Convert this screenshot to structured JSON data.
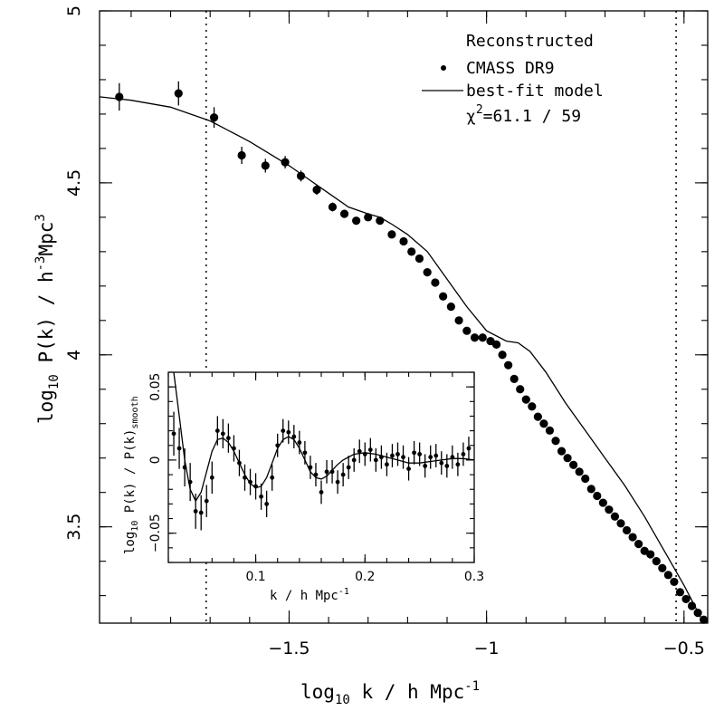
{
  "chart_data": [
    {
      "type": "scatter",
      "role": "main",
      "xlabel_main": "log",
      "xlabel_sub": "10",
      "xlabel_rest": " k / h Mpc",
      "xlabel_sup": "-1",
      "ylabel_main": "log",
      "ylabel_sub": "10",
      "ylabel_rest": " P(k) / h",
      "ylabel_sup1": "-3",
      "ylabel_mid": "Mpc",
      "ylabel_sup2": "3",
      "xlim": [
        -1.98,
        -0.44
      ],
      "ylim": [
        3.22,
        5.0
      ],
      "xticks": [
        -1.5,
        -1,
        -0.5
      ],
      "xtick_labels": [
        "−1.5",
        "−1",
        "−0.5"
      ],
      "yticks": [
        3.5,
        4,
        4.5,
        5
      ],
      "ytick_labels": [
        "3.5",
        "4",
        "4.5",
        "5"
      ],
      "vertical_lines": [
        -1.71,
        -0.52
      ],
      "legend": {
        "title": "Reconstructed",
        "points_label": "CMASS DR9",
        "line_label": "best-fit model",
        "chi_prefix": "χ",
        "chi_sup": "2",
        "chi_rest": "=61.1 / 59"
      },
      "series": [
        {
          "name": "CMASS DR9",
          "kind": "points",
          "x": [
            -1.93,
            -1.78,
            -1.69,
            -1.62,
            -1.56,
            -1.51,
            -1.47,
            -1.43,
            -1.39,
            -1.36,
            -1.33,
            -1.3,
            -1.27,
            -1.24,
            -1.21,
            -1.19,
            -1.17,
            -1.15,
            -1.13,
            -1.11,
            -1.09,
            -1.07,
            -1.05,
            -1.03,
            -1.01,
            -0.99,
            -0.975,
            -0.96,
            -0.945,
            -0.93,
            -0.915,
            -0.9,
            -0.885,
            -0.87,
            -0.855,
            -0.84,
            -0.825,
            -0.81,
            -0.795,
            -0.78,
            -0.765,
            -0.75,
            -0.735,
            -0.72,
            -0.705,
            -0.69,
            -0.675,
            -0.66,
            -0.645,
            -0.63,
            -0.615,
            -0.6,
            -0.585,
            -0.57,
            -0.555,
            -0.54,
            -0.525,
            -0.51,
            -0.495,
            -0.48,
            -0.465,
            -0.45
          ],
          "y": [
            4.75,
            4.76,
            4.69,
            4.58,
            4.55,
            4.56,
            4.52,
            4.48,
            4.43,
            4.41,
            4.39,
            4.4,
            4.39,
            4.35,
            4.33,
            4.3,
            4.28,
            4.24,
            4.21,
            4.17,
            4.14,
            4.1,
            4.07,
            4.05,
            4.05,
            4.04,
            4.03,
            4.0,
            3.97,
            3.93,
            3.9,
            3.87,
            3.85,
            3.82,
            3.8,
            3.78,
            3.75,
            3.72,
            3.7,
            3.68,
            3.66,
            3.64,
            3.61,
            3.59,
            3.57,
            3.55,
            3.53,
            3.51,
            3.49,
            3.47,
            3.45,
            3.43,
            3.42,
            3.4,
            3.38,
            3.36,
            3.34,
            3.31,
            3.29,
            3.27,
            3.25,
            3.23
          ],
          "err": [
            0.04,
            0.035,
            0.03,
            0.025,
            0.02,
            0.018,
            0.016,
            0.015,
            0.013,
            0.012,
            0.011,
            0.011,
            0.01,
            0.01,
            0.009,
            0.009,
            0.008,
            0.008,
            0.008,
            0.007,
            0.007,
            0.007,
            0.007,
            0.006,
            0.006,
            0.006,
            0.006,
            0.006,
            0.006,
            0.006,
            0.006,
            0.006,
            0.006,
            0.006,
            0.006,
            0.006,
            0.006,
            0.006,
            0.006,
            0.006,
            0.006,
            0.006,
            0.006,
            0.006,
            0.006,
            0.006,
            0.006,
            0.006,
            0.006,
            0.006,
            0.006,
            0.006,
            0.006,
            0.006,
            0.006,
            0.006,
            0.006,
            0.006,
            0.006,
            0.006,
            0.006,
            0.006
          ]
        },
        {
          "name": "best-fit model",
          "kind": "line",
          "x": [
            -1.98,
            -1.9,
            -1.8,
            -1.7,
            -1.6,
            -1.5,
            -1.45,
            -1.4,
            -1.35,
            -1.3,
            -1.27,
            -1.24,
            -1.2,
            -1.15,
            -1.1,
            -1.05,
            -1.0,
            -0.95,
            -0.92,
            -0.89,
            -0.85,
            -0.8,
            -0.75,
            -0.7,
            -0.65,
            -0.6,
            -0.55,
            -0.5,
            -0.45
          ],
          "y": [
            4.75,
            4.74,
            4.72,
            4.68,
            4.62,
            4.55,
            4.51,
            4.47,
            4.43,
            4.41,
            4.4,
            4.38,
            4.35,
            4.3,
            4.22,
            4.14,
            4.07,
            4.04,
            4.035,
            4.01,
            3.95,
            3.86,
            3.78,
            3.7,
            3.62,
            3.53,
            3.43,
            3.33,
            3.22
          ]
        }
      ]
    },
    {
      "type": "scatter",
      "role": "inset",
      "xlabel": "k / h Mpc",
      "xlabel_sup": "-1",
      "ylabel_main": "log",
      "ylabel_sub": "10",
      "ylabel_rest": " P(k) / P(k)",
      "ylabel_sub2": "smooth",
      "xlim": [
        0.02,
        0.3
      ],
      "ylim": [
        -0.07,
        0.06
      ],
      "xticks": [
        0.1,
        0.2,
        0.3
      ],
      "xtick_labels": [
        "0.1",
        "0.2",
        "0.3"
      ],
      "yticks": [
        -0.05,
        0,
        0.05
      ],
      "ytick_labels": [
        "−0.05",
        "0",
        "0.05"
      ],
      "series": [
        {
          "name": "CMASS DR9",
          "kind": "points",
          "x": [
            0.025,
            0.03,
            0.035,
            0.04,
            0.045,
            0.05,
            0.055,
            0.06,
            0.065,
            0.07,
            0.075,
            0.08,
            0.085,
            0.09,
            0.095,
            0.1,
            0.105,
            0.11,
            0.115,
            0.12,
            0.125,
            0.13,
            0.135,
            0.14,
            0.145,
            0.15,
            0.155,
            0.16,
            0.165,
            0.17,
            0.175,
            0.18,
            0.185,
            0.19,
            0.195,
            0.2,
            0.205,
            0.21,
            0.215,
            0.22,
            0.225,
            0.23,
            0.235,
            0.24,
            0.245,
            0.25,
            0.255,
            0.26,
            0.265,
            0.27,
            0.275,
            0.28,
            0.285,
            0.29,
            0.295
          ],
          "y": [
            0.018,
            0.008,
            -0.005,
            -0.015,
            -0.035,
            -0.036,
            -0.028,
            -0.012,
            0.02,
            0.018,
            0.015,
            0.008,
            -0.002,
            -0.012,
            -0.015,
            -0.018,
            -0.025,
            -0.03,
            -0.012,
            0.01,
            0.02,
            0.019,
            0.016,
            0.012,
            0.005,
            -0.005,
            -0.01,
            -0.022,
            -0.008,
            -0.008,
            -0.015,
            -0.01,
            -0.005,
            0.0,
            0.006,
            0.004,
            0.007,
            0.0,
            0.002,
            -0.003,
            0.003,
            0.004,
            0.002,
            -0.006,
            0.005,
            0.004,
            -0.004,
            0.002,
            0.003,
            -0.002,
            -0.004,
            0.002,
            -0.003,
            0.004,
            0.008
          ],
          "err": [
            0.015,
            0.014,
            0.013,
            0.013,
            0.012,
            0.012,
            0.011,
            0.011,
            0.01,
            0.01,
            0.01,
            0.009,
            0.009,
            0.009,
            0.009,
            0.009,
            0.009,
            0.009,
            0.009,
            0.008,
            0.008,
            0.008,
            0.008,
            0.008,
            0.008,
            0.008,
            0.008,
            0.008,
            0.008,
            0.008,
            0.008,
            0.008,
            0.008,
            0.008,
            0.008,
            0.008,
            0.008,
            0.008,
            0.008,
            0.008,
            0.008,
            0.008,
            0.008,
            0.008,
            0.008,
            0.008,
            0.008,
            0.008,
            0.008,
            0.008,
            0.008,
            0.008,
            0.008,
            0.008,
            0.008
          ]
        },
        {
          "name": "best-fit model",
          "kind": "line",
          "x": [
            0.025,
            0.03,
            0.035,
            0.04,
            0.045,
            0.05,
            0.055,
            0.06,
            0.065,
            0.07,
            0.075,
            0.08,
            0.085,
            0.09,
            0.095,
            0.1,
            0.105,
            0.11,
            0.115,
            0.12,
            0.125,
            0.13,
            0.135,
            0.14,
            0.145,
            0.15,
            0.155,
            0.16,
            0.165,
            0.17,
            0.175,
            0.18,
            0.19,
            0.2,
            0.21,
            0.22,
            0.23,
            0.24,
            0.25,
            0.26,
            0.27,
            0.28,
            0.29,
            0.3
          ],
          "y": [
            0.06,
            0.03,
            0.0,
            -0.02,
            -0.028,
            -0.022,
            -0.008,
            0.006,
            0.014,
            0.015,
            0.012,
            0.006,
            -0.002,
            -0.01,
            -0.016,
            -0.019,
            -0.018,
            -0.012,
            -0.002,
            0.008,
            0.014,
            0.016,
            0.014,
            0.008,
            0.0,
            -0.008,
            -0.012,
            -0.013,
            -0.011,
            -0.007,
            -0.003,
            0.0,
            0.004,
            0.005,
            0.004,
            0.002,
            0.0,
            -0.002,
            -0.002,
            -0.001,
            0.0,
            0.001,
            0.001,
            0.0
          ]
        }
      ]
    }
  ]
}
